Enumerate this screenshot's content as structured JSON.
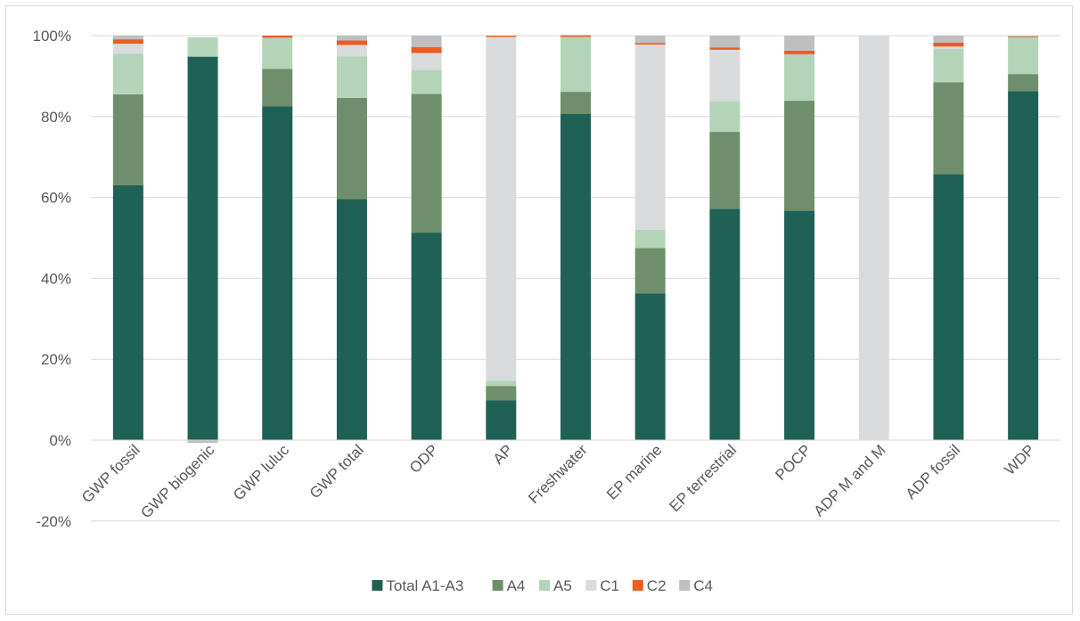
{
  "chart_data": {
    "type": "bar",
    "stacked": true,
    "title": "",
    "xlabel": "",
    "ylabel": "",
    "ylim": [
      -20,
      100
    ],
    "y_ticks": [
      "-20%",
      "0%",
      "20%",
      "40%",
      "60%",
      "80%",
      "100%"
    ],
    "y_tick_values": [
      -20,
      0,
      20,
      40,
      60,
      80,
      100
    ],
    "grid": true,
    "legend_position": "bottom",
    "categories": [
      "GWP fossil",
      "GWP biogenic",
      "GWP luluc",
      "GWP total",
      "ODP",
      "AP",
      "Freshwater",
      "EP marine",
      "EP terrestrial",
      "POCP",
      "ADP M and M",
      "ADP fossil",
      "WDP"
    ],
    "series": [
      {
        "name": "Total A1-A3",
        "color": "#1f6154",
        "values": [
          63.0,
          94.8,
          82.5,
          59.6,
          51.3,
          9.8,
          80.7,
          36.3,
          57.2,
          56.7,
          0.0,
          65.8,
          86.3
        ]
      },
      {
        "name": "A4",
        "color": "#6f8f6c",
        "values": [
          22.5,
          0.0,
          9.3,
          25.0,
          34.3,
          3.6,
          5.4,
          11.2,
          19.0,
          27.2,
          0.0,
          22.7,
          4.2
        ]
      },
      {
        "name": "A5",
        "color": "#b3d4b9",
        "values": [
          10.0,
          4.8,
          7.7,
          10.3,
          5.9,
          1.3,
          13.6,
          4.5,
          7.6,
          11.5,
          0.0,
          8.2,
          9.1
        ]
      },
      {
        "name": "C1",
        "color": "#dadbdd",
        "values": [
          2.5,
          0.0,
          0.0,
          2.8,
          4.2,
          85.0,
          0.0,
          45.8,
          12.7,
          0.0,
          100.0,
          0.6,
          0.0
        ]
      },
      {
        "name": "C2",
        "color": "#ed5c23",
        "values": [
          1.1,
          0.0,
          0.5,
          1.1,
          1.5,
          0.3,
          0.4,
          0.4,
          0.6,
          0.9,
          0.0,
          1.0,
          0.2
        ]
      },
      {
        "name": "C4",
        "color": "#bfbfbf",
        "values": [
          0.9,
          -0.7,
          0.0,
          1.2,
          2.8,
          0.0,
          0.0,
          1.8,
          2.9,
          3.7,
          0.0,
          1.7,
          0.2
        ]
      }
    ]
  }
}
